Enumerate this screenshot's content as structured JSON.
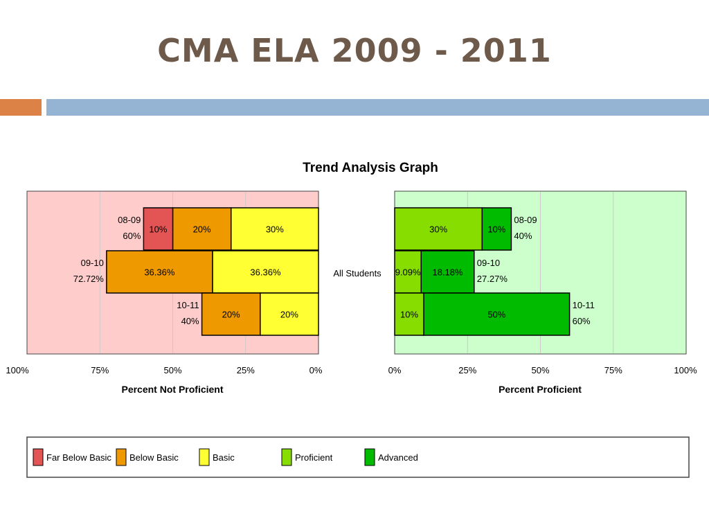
{
  "slide": {
    "title": "CMA ELA 2009 - 2011",
    "colors": {
      "title": "#6e5a4a",
      "accent_bar": "#dd8247",
      "main_bar": "#95b3d2"
    }
  },
  "chart_data": {
    "type": "bar",
    "orientation": "horizontal-diverging",
    "title": "Trend Analysis Graph",
    "row_label": "All Students",
    "categories": [
      "08-09",
      "09-10",
      "10-11"
    ],
    "not_proficient": {
      "xlabel": "Percent Not Proficient",
      "background": "#ffcccc",
      "ticks": [
        "100%",
        "75%",
        "50%",
        "25%",
        "0%"
      ],
      "xlim": [
        100,
        0
      ],
      "totals": [
        "60%",
        "72.72%",
        "40%"
      ],
      "series": [
        {
          "name": "Basic",
          "color": "#ffff33",
          "values": [
            30,
            36.36,
            20
          ],
          "labels": [
            "30%",
            "36.36%",
            "20%"
          ]
        },
        {
          "name": "Below Basic",
          "color": "#ee9900",
          "values": [
            20,
            36.36,
            20
          ],
          "labels": [
            "20%",
            "36.36%",
            "20%"
          ]
        },
        {
          "name": "Far Below Basic",
          "color": "#e35555",
          "values": [
            10,
            0,
            0
          ],
          "labels": [
            "10%",
            "",
            ""
          ]
        }
      ]
    },
    "proficient": {
      "xlabel": "Percent Proficient",
      "background": "#ccffcc",
      "ticks": [
        "0%",
        "25%",
        "50%",
        "75%",
        "100%"
      ],
      "xlim": [
        0,
        100
      ],
      "totals": [
        "40%",
        "27.27%",
        "60%"
      ],
      "series": [
        {
          "name": "Proficient",
          "color": "#88dd00",
          "values": [
            30,
            9.09,
            10
          ],
          "labels": [
            "30%",
            "9.09%",
            "10%"
          ]
        },
        {
          "name": "Advanced",
          "color": "#00bb00",
          "values": [
            10,
            18.18,
            50
          ],
          "labels": [
            "10%",
            "18.18%",
            "50%"
          ]
        }
      ]
    },
    "legend": {
      "position": "bottom",
      "items": [
        {
          "name": "Far Below Basic",
          "color": "#e35555"
        },
        {
          "name": "Below Basic",
          "color": "#ee9900"
        },
        {
          "name": "Basic",
          "color": "#ffff33"
        },
        {
          "name": "Proficient",
          "color": "#88dd00"
        },
        {
          "name": "Advanced",
          "color": "#00bb00"
        }
      ]
    }
  }
}
